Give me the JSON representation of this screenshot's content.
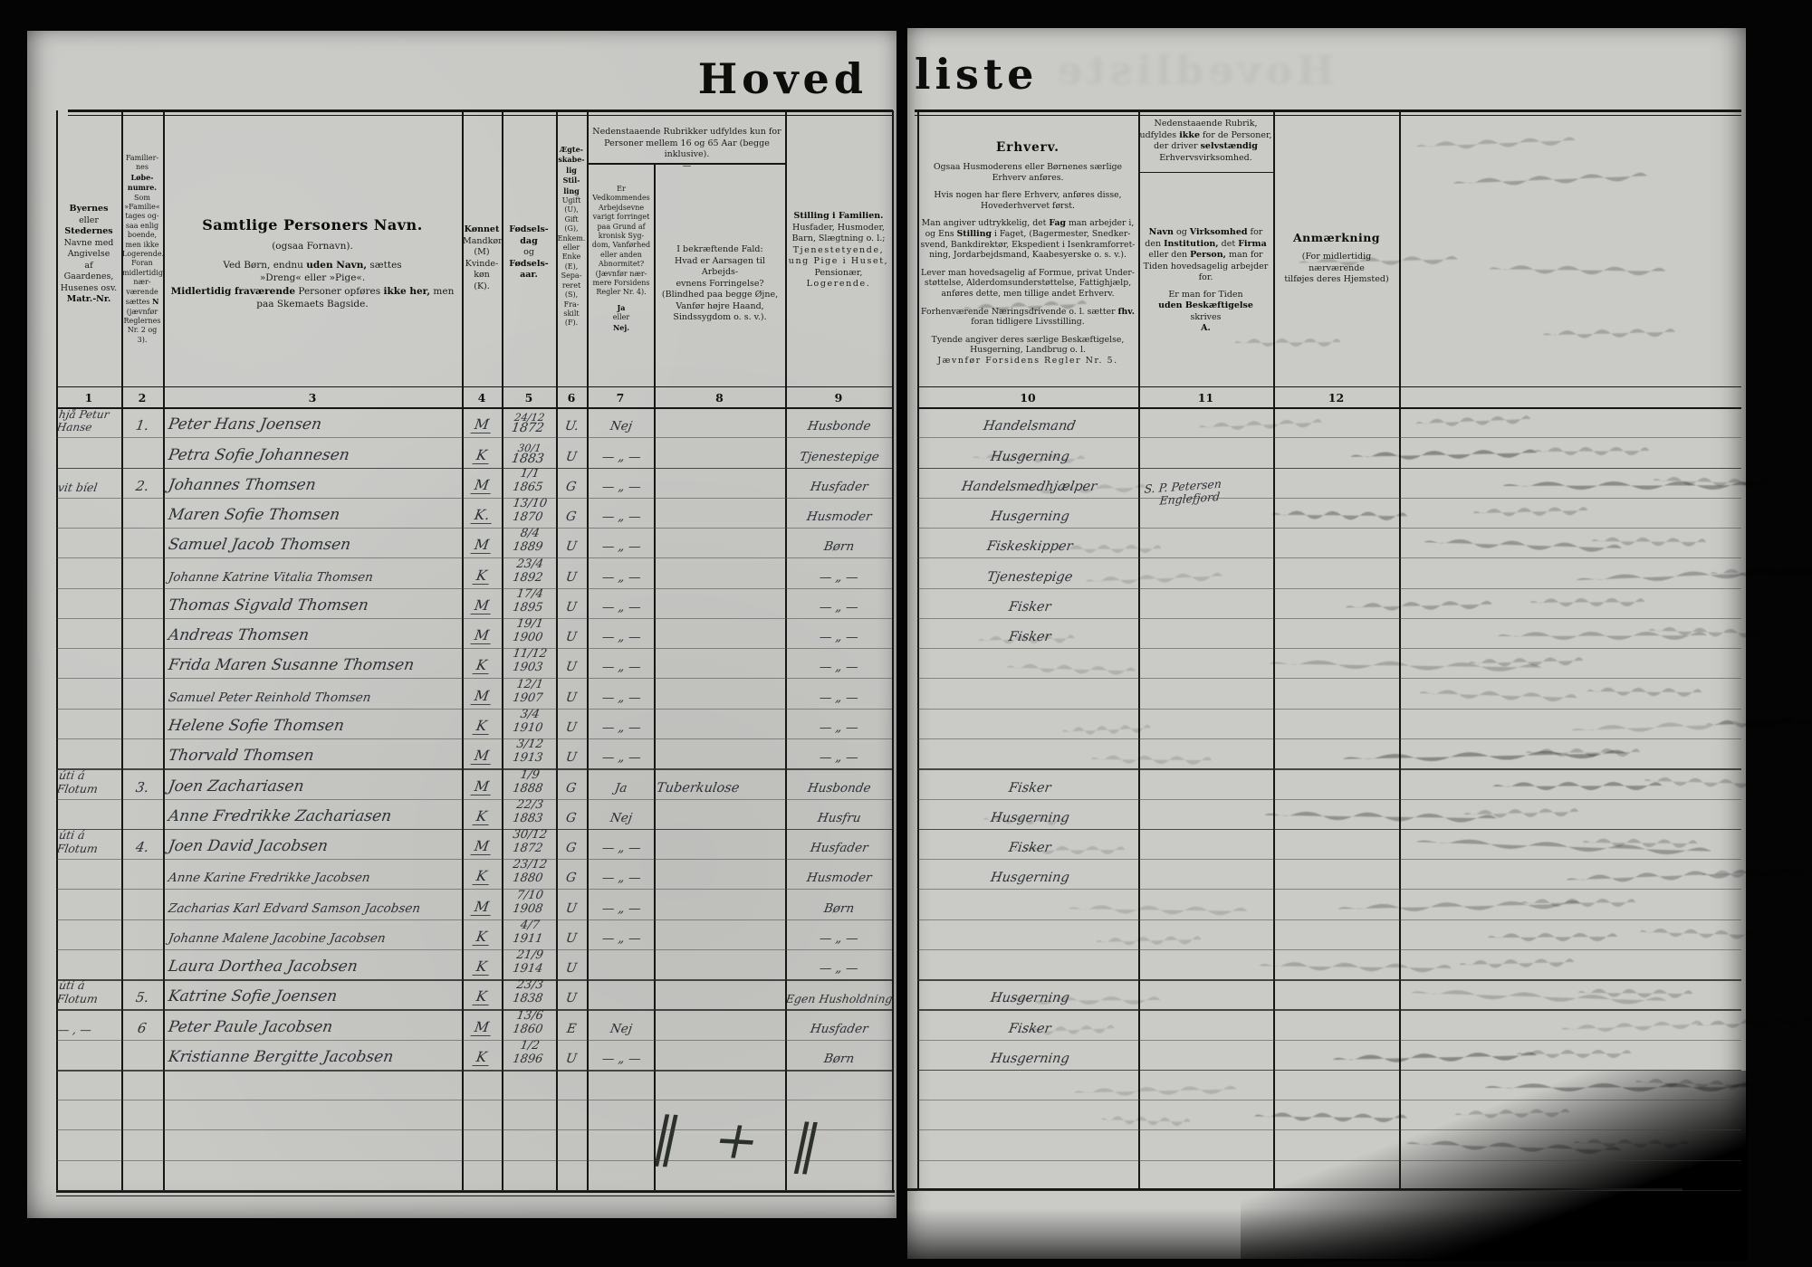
{
  "title": {
    "left": "Hoved",
    "right": "liste"
  },
  "tally": "‖ + ‖",
  "colors": {
    "background": "#000000",
    "page": "#c8c8c5",
    "ink": "#2c3135",
    "print": "#1a1a18"
  },
  "column_numbers": {
    "left": [
      "1",
      "2",
      "3",
      "4",
      "5",
      "6",
      "7",
      "8",
      "9"
    ],
    "right": [
      "10",
      "11",
      "12"
    ]
  },
  "left_header": {
    "group_7_8": [
      "Nedenstaaende Rubrikker udfyldes kun for",
      "Personer mellem 16 og 65 Aar (begge inklusive).",
      "—"
    ],
    "col1": [
      {
        "t": "Byernes",
        "b": 1
      },
      "eller",
      {
        "t": "Stedernes",
        "b": 1
      },
      "Navne med",
      "Angivelse",
      "af",
      "Gaardenes,",
      "Husenes osv.",
      {
        "t": "Matr.-Nr.",
        "b": 1
      }
    ],
    "col2": [
      "Familier-",
      "nes",
      {
        "t": "Løbe-",
        "b": 1
      },
      {
        "t": "numre.",
        "b": 1
      },
      "Som",
      "»Familie«",
      "tages og-",
      "saa enlig",
      "boende,",
      "men ikke",
      "Logerende.",
      "Foran",
      "midlertidig",
      "nær-",
      "værende",
      {
        "seg": [
          "sættes ",
          {
            "t": "N",
            "b": 1
          }
        ]
      },
      "(jævnfør",
      "Reglernes",
      "Nr. 2 og 3)."
    ],
    "col3": [
      {
        "t": "Samtlige Personers Navn.",
        "b": 1,
        "c": "t1"
      },
      {
        "t": "(ogsaa Fornavn).",
        "c": "t2 gap2"
      },
      {
        "seg": [
          "Ved Børn, endnu ",
          {
            "t": "uden Navn,",
            "b": 1
          },
          " sættes"
        ],
        "c": "t2 gap2"
      },
      {
        "t": "»Dreng« eller »Pige«.",
        "c": "t2"
      },
      {
        "seg": [
          {
            "t": "Midlertidig fraværende",
            "b": 1
          },
          " Personer opføres ",
          {
            "t": "ikke her,",
            "b": 1
          },
          " men"
        ],
        "c": "t2"
      },
      {
        "t": "paa Skemaets Bagside.",
        "c": "t2"
      }
    ],
    "col4": [
      {
        "t": "Kønnet",
        "b": 1
      },
      "Mandkøn",
      "(M)",
      "Kvinde-",
      "køn",
      "(K)."
    ],
    "col5": [
      {
        "t": "Fødsels-",
        "b": 1
      },
      {
        "t": "dag",
        "b": 1
      },
      "og",
      {
        "t": "Fødsels-",
        "b": 1
      },
      {
        "t": "aar.",
        "b": 1
      }
    ],
    "col6": [
      {
        "t": "Ægte-",
        "b": 1
      },
      {
        "t": "skabe-",
        "b": 1
      },
      {
        "t": "lig",
        "b": 1
      },
      {
        "t": "Stil-",
        "b": 1
      },
      {
        "t": "ling",
        "b": 1
      },
      "Ugift",
      "(U),",
      "Gift",
      "(G),",
      "Enkem.",
      "eller",
      "Enke",
      "(E),",
      "Sepa-",
      "reret",
      "(S),",
      "Fra-",
      "skilt",
      "(F)."
    ],
    "col7": [
      "Er",
      "Vedkommendes",
      "Arbejdsevne",
      "varigt forringet",
      "paa Grund af",
      "kronisk Syg-",
      "dom, Vanførhed",
      "eller anden",
      "Abnormitet?",
      "(Jævnfør nær-",
      "mere Forsidens",
      "Regler Nr. 4).",
      {
        "t": "Ja",
        "b": 1,
        "c": "gap2"
      },
      "eller",
      {
        "t": "Nej.",
        "b": 1
      }
    ],
    "col8": [
      "I bekræftende Fald:",
      "Hvad er Aarsagen til Arbejds-",
      "evnens Forringelse?",
      "(Blindhed paa begge Øjne,",
      "Vanfør højre Haand,",
      "Sindssygdom o. s. v.)."
    ],
    "col9": [
      {
        "t": "Stilling i Familien.",
        "b": 1
      },
      "Husfader, Husmoder,",
      "Barn, Slægtning o. l.;",
      {
        "t": "Tjenestetyende,",
        "ls": 1
      },
      {
        "t": "ung Pige i Huset,",
        "ls": 1
      },
      "Pensionær,",
      {
        "t": "Logerende.",
        "ls": 1
      }
    ]
  },
  "right_header": {
    "col10": [
      {
        "t": "Erhverv.",
        "b": 1,
        "c": "t1b"
      },
      {
        "t": "Ogsaa Husmoderens eller Børnenes særlige",
        "c": "gap"
      },
      "Erhverv anføres.",
      {
        "t": "Hvis nogen har flere Erhverv, anføres disse,",
        "c": "gap"
      },
      "Hovederhvervet først.",
      {
        "seg": [
          "Man angiver udtrykkelig, det ",
          {
            "t": "Fag",
            "b": 1
          },
          " man arbejder i,"
        ],
        "c": "gap"
      },
      {
        "seg": [
          "og Ens ",
          {
            "t": "Stilling",
            "b": 1
          },
          " i Faget, (Bagermester, Snedker-"
        ]
      },
      "svend, Bankdirektør, Ekspedient i Isenkramforret-",
      "ning, Jordarbejdsmand, Kaabesyerske o. s. v.).",
      {
        "t": "Lever man hovedsagelig af Formue, privat Under-",
        "c": "gap"
      },
      "støttelse, Alderdomsunderstøttelse, Fattighjælp,",
      "anføres dette, men tillige andet Erhverv.",
      {
        "seg": [
          "Forhenværende Næringsdrivende o. l. sætter ",
          {
            "t": "fhv.",
            "b": 1
          }
        ],
        "c": "gap"
      },
      "foran tidligere Livsstilling.",
      {
        "t": "Tyende angiver deres særlige Beskæftigelse,",
        "c": "gap"
      },
      "Husgerning, Landbrug o. l.",
      {
        "t": "Jævnfør Forsidens Regler Nr. 5.",
        "ls": 1
      }
    ],
    "col11_top": [
      "Nedenstaaende Rubrik,",
      {
        "seg": [
          "udfyldes ",
          {
            "t": "ikke",
            "b": 1
          },
          " for de Personer,"
        ]
      },
      {
        "seg": [
          "der driver ",
          {
            "t": "selvstændig",
            "b": 1
          }
        ]
      },
      "Erhvervsvirksomhed."
    ],
    "col11_main": [
      {
        "seg": [
          {
            "t": "Navn",
            "b": 1
          },
          " og ",
          {
            "t": "Virksomhed",
            "b": 1
          },
          " for"
        ]
      },
      {
        "seg": [
          "den ",
          {
            "t": "Institution,",
            "b": 1
          },
          " det ",
          {
            "t": "Firma",
            "b": 1
          }
        ]
      },
      {
        "seg": [
          "eller den ",
          {
            "t": "Person,",
            "b": 1
          },
          " man for"
        ]
      },
      "Tiden hovedsagelig arbejder",
      "for.",
      {
        "t": "Er man for Tiden",
        "c": "gap2"
      },
      {
        "t": "uden Beskæftigelse",
        "b": 1
      },
      "skrives",
      {
        "t": "A.",
        "b": 1
      }
    ],
    "col12": [
      {
        "t": "Anmærkning",
        "b": 1,
        "c": "t1c"
      },
      {
        "t": "(For midlertidig nærværende",
        "c": "gap"
      },
      "tilføjes deres Hjemsted)"
    ]
  },
  "rows": [
    {
      "p2": [
        "hjå Petur",
        "Hanse"
      ],
      "n": "1.",
      "nm": "Peter Hans Joensen",
      "sx": "M",
      "d2": [
        "24/12",
        "1872"
      ],
      "st": "U.",
      "ab": "Nej",
      "fm": "Husbonde",
      "oc": "Handelsmand"
    },
    {
      "nm": "Petra Sofie Johannesen",
      "sx": "K",
      "d2": [
        "30/1",
        "1883"
      ],
      "st": "U",
      "ab": "— „ —",
      "fm": "Tjenestepige",
      "oc": "Husgerning"
    },
    {
      "p": "vit bíel",
      "n": "2.",
      "nm": "Johannes Thomsen",
      "sx": "M",
      "d": "1/1 1865",
      "st": "G",
      "ab": "— „ —",
      "fm": "Husfader",
      "oc": "Handelsmedhjælper",
      "em": [
        "S. P. Petersen",
        "Englefjord"
      ]
    },
    {
      "nm": "Maren Sofie Thomsen",
      "sx": "K.",
      "d": "13/10 1870",
      "st": "G",
      "ab": "— „ —",
      "fm": "Husmoder",
      "oc": "Husgerning"
    },
    {
      "nm": "Samuel Jacob Thomsen",
      "sx": "M",
      "d": "8/4 1889",
      "st": "U",
      "ab": "— „ —",
      "fm": "Børn",
      "oc": "Fiskeskipper"
    },
    {
      "nm": "Johanne Katrine Vitalia Thomsen",
      "sx": "K",
      "d": "23/4 1892",
      "st": "U",
      "ab": "— „ —",
      "fm": "— „ —",
      "oc": "Tjenestepige"
    },
    {
      "nm": "Thomas Sigvald Thomsen",
      "sx": "M",
      "d": "17/4 1895",
      "st": "U",
      "ab": "— „ —",
      "fm": "— „ —",
      "oc": "Fisker"
    },
    {
      "nm": "Andreas Thomsen",
      "sx": "M",
      "d": "19/1 1900",
      "st": "U",
      "ab": "— „ —",
      "fm": "— „ —",
      "oc": "Fisker"
    },
    {
      "nm": "Frida Maren Susanne Thomsen",
      "sx": "K",
      "d": "11/12 1903",
      "st": "U",
      "ab": "— „ —",
      "fm": "— „ —"
    },
    {
      "nm": "Samuel Peter Reinhold Thomsen",
      "sx": "M",
      "d": "12/1 1907",
      "st": "U",
      "ab": "— „ —",
      "fm": "— „ —"
    },
    {
      "nm": "Helene Sofie Thomsen",
      "sx": "K",
      "d": "3/4 1910",
      "st": "U",
      "ab": "— „ —",
      "fm": "— „ —"
    },
    {
      "nm": "Thorvald Thomsen",
      "sx": "M",
      "d": "3/12 1913",
      "st": "U",
      "ab": "— „ —",
      "fm": "— „ —"
    },
    {
      "p": "úti á Flotum",
      "n": "3.",
      "nm": "Joen Zachariasen",
      "sx": "M",
      "d": "1/9 1888",
      "st": "G",
      "ab": "Ja",
      "ca": "Tuberkulose",
      "fm": "Husbonde",
      "oc": "Fisker"
    },
    {
      "nm": "Anne Fredrikke Zachariasen",
      "sx": "K",
      "d": "22/3 1883",
      "st": "G",
      "ab": "Nej",
      "fm": "Husfru",
      "oc": "Husgerning"
    },
    {
      "p": "úti á Flotum",
      "n": "4.",
      "nm": "Joen David Jacobsen",
      "sx": "M",
      "d": "30/12 1872",
      "st": "G",
      "ab": "— „ —",
      "fm": "Husfader",
      "oc": "Fisker"
    },
    {
      "nm": "Anne Karine Fredrikke Jacobsen",
      "sx": "K",
      "d": "23/12 1880",
      "st": "G",
      "ab": "— „ —",
      "fm": "Husmoder",
      "oc": "Husgerning"
    },
    {
      "nm": "Zacharias Karl Edvard Samson Jacobsen",
      "sx": "M",
      "d": "7/10 1908",
      "st": "U",
      "ab": "— „ —",
      "fm": "Børn"
    },
    {
      "nm": "Johanne Malene Jacobine Jacobsen",
      "sx": "K",
      "d": "4/7 1911",
      "st": "U",
      "ab": "— „ —",
      "fm": "— „ —"
    },
    {
      "nm": "Laura Dorthea Jacobsen",
      "sx": "K",
      "d": "21/9 1914",
      "st": "U",
      "fm": "— „ —"
    },
    {
      "p": "úti á Flotum",
      "n": "5.",
      "nm": "Katrine Sofie Joensen",
      "sx": "K",
      "d": "23/3 1838",
      "st": "U",
      "fm": "Egen Husholdning",
      "oc": "Husgerning"
    },
    {
      "p": "—  ,  —",
      "n": "6",
      "nm": "Peter Paule Jacobsen",
      "sx": "M",
      "d": "13/6 1860",
      "st": "E",
      "ab": "Nej",
      "fm": "Husfader",
      "oc": "Fisker"
    },
    {
      "nm": "Kristianne Bergitte Jacobsen",
      "sx": "K",
      "d": "1/2 1896",
      "st": "U",
      "ab": "— „ —",
      "fm": "Børn",
      "oc": "Husgerning"
    },
    {},
    {},
    {},
    {}
  ]
}
